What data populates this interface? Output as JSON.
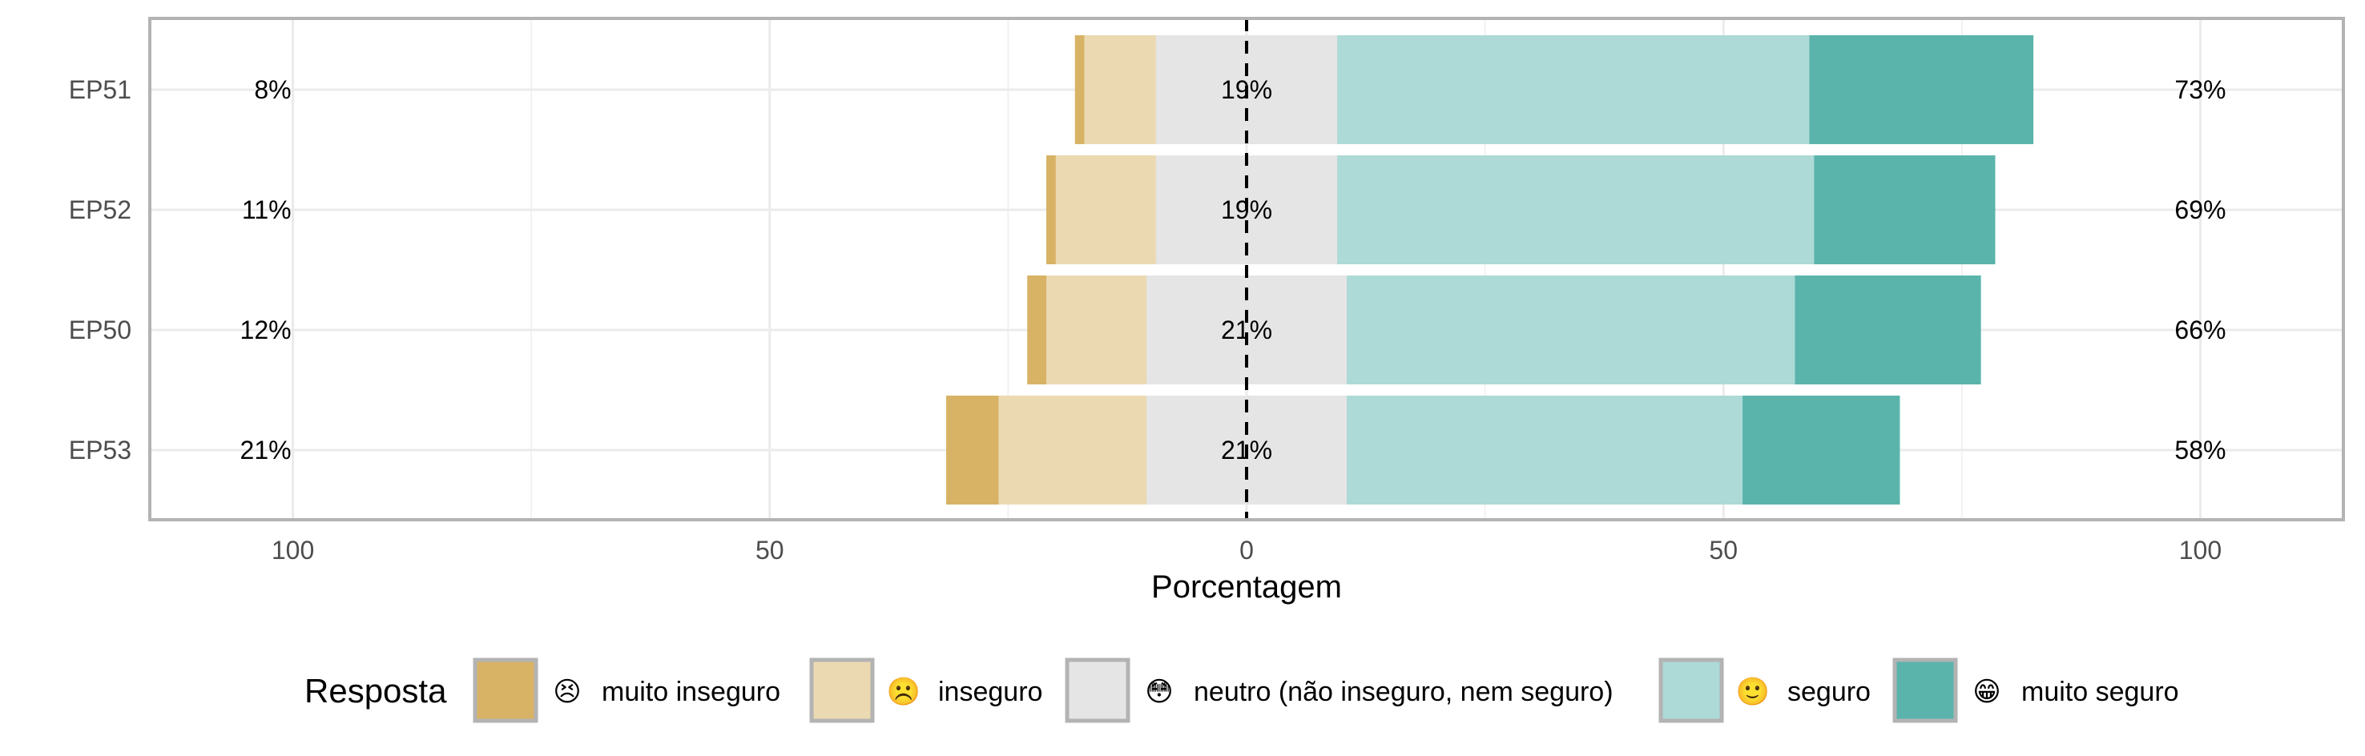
{
  "chart_data": {
    "type": "bar",
    "orientation": "horizontal-diverging-stacked",
    "xlabel": "Porcentagem",
    "xlim": [
      -115,
      115
    ],
    "x_ticks": [
      -100,
      -50,
      0,
      50,
      100
    ],
    "x_tick_labels": [
      "100",
      "50",
      "0",
      "50",
      "100"
    ],
    "grid": true,
    "legend_position": "bottom",
    "categories": [
      "EP51",
      "EP52",
      "EP50",
      "EP53"
    ],
    "series": [
      {
        "name": "muito inseguro",
        "emoji": "😣",
        "color": "#D8B365",
        "values": [
          1,
          1,
          2,
          5.5
        ]
      },
      {
        "name": "inseguro",
        "emoji": "☹️",
        "color": "#EBD9B2",
        "values": [
          7.5,
          10.5,
          10.5,
          15.5
        ]
      },
      {
        "name": "neutro (não inseguro, nem seguro)",
        "emoji": "😳",
        "color": "#E5E5E5",
        "values": [
          19,
          19,
          21,
          21
        ]
      },
      {
        "name": "seguro",
        "emoji": "🙂",
        "color": "#ADDAD6",
        "values": [
          49.5,
          50,
          47,
          41.5
        ]
      },
      {
        "name": "muito seguro",
        "emoji": "😁",
        "color": "#5AB4AC",
        "values": [
          23.5,
          19,
          19.5,
          16.5
        ]
      }
    ],
    "left_labels": [
      "8%",
      "11%",
      "12%",
      "21%"
    ],
    "center_labels": [
      "19%",
      "19%",
      "21%",
      "21%"
    ],
    "right_labels": [
      "73%",
      "69%",
      "66%",
      "58%"
    ],
    "legend_title": "Resposta"
  }
}
